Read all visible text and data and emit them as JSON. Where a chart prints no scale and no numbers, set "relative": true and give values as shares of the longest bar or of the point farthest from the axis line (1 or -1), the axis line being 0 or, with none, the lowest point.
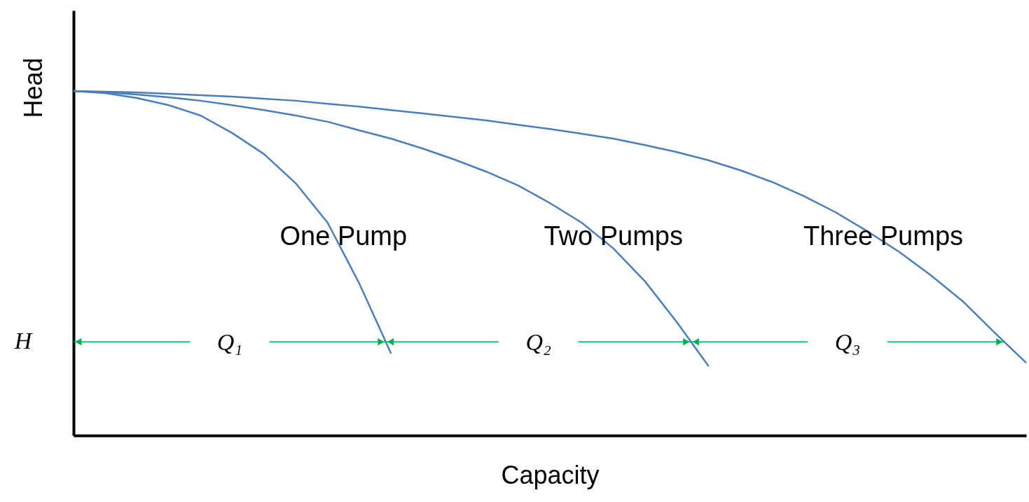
{
  "chart_data": {
    "type": "line",
    "relative": true,
    "xlabel": "Capacity",
    "ylabel": "Head",
    "categories": [
      null,
      null,
      null,
      null,
      null,
      null,
      null,
      null,
      null,
      null,
      null,
      null,
      null,
      null,
      null,
      null,
      null,
      null,
      null,
      null,
      null,
      null,
      null,
      null,
      null,
      null,
      null,
      null,
      null,
      null,
      null
    ],
    "series": [
      {
        "name": "One Pump",
        "color": "#4a7ebb",
        "values": [
          1,
          0.994,
          0.98,
          0.959,
          0.929,
          0.878,
          0.817,
          0.732,
          0.618,
          0.441,
          0.238,
          null,
          null,
          null,
          null,
          null,
          null,
          null,
          null,
          null,
          null,
          null,
          null,
          null,
          null,
          null,
          null,
          null,
          null,
          null,
          null
        ]
      },
      {
        "name": "Two Pumps",
        "color": "#4a7ebb",
        "values": [
          1,
          0.996,
          0.99,
          0.982,
          0.972,
          0.959,
          0.945,
          0.929,
          0.911,
          0.886,
          0.862,
          0.833,
          0.801,
          0.766,
          0.726,
          0.675,
          0.618,
          0.543,
          0.447,
          0.329,
          0.201,
          null,
          null,
          null,
          null,
          null,
          null,
          null,
          null,
          null,
          null
        ]
      },
      {
        "name": "Three Pumps",
        "color": "#4a7ebb",
        "values": [
          1,
          0.998,
          0.996,
          0.992,
          0.988,
          0.984,
          0.978,
          0.972,
          0.963,
          0.955,
          0.945,
          0.935,
          0.925,
          0.915,
          0.902,
          0.89,
          0.876,
          0.862,
          0.843,
          0.823,
          0.799,
          0.77,
          0.736,
          0.695,
          0.648,
          0.593,
          0.533,
          0.465,
          0.39,
          0.299,
          0.211
        ]
      }
    ],
    "annotations": [
      "H",
      "Q₁",
      "Q₂",
      "Q₃"
    ],
    "grid": false,
    "marker": "none",
    "line_style": "solid"
  }
}
